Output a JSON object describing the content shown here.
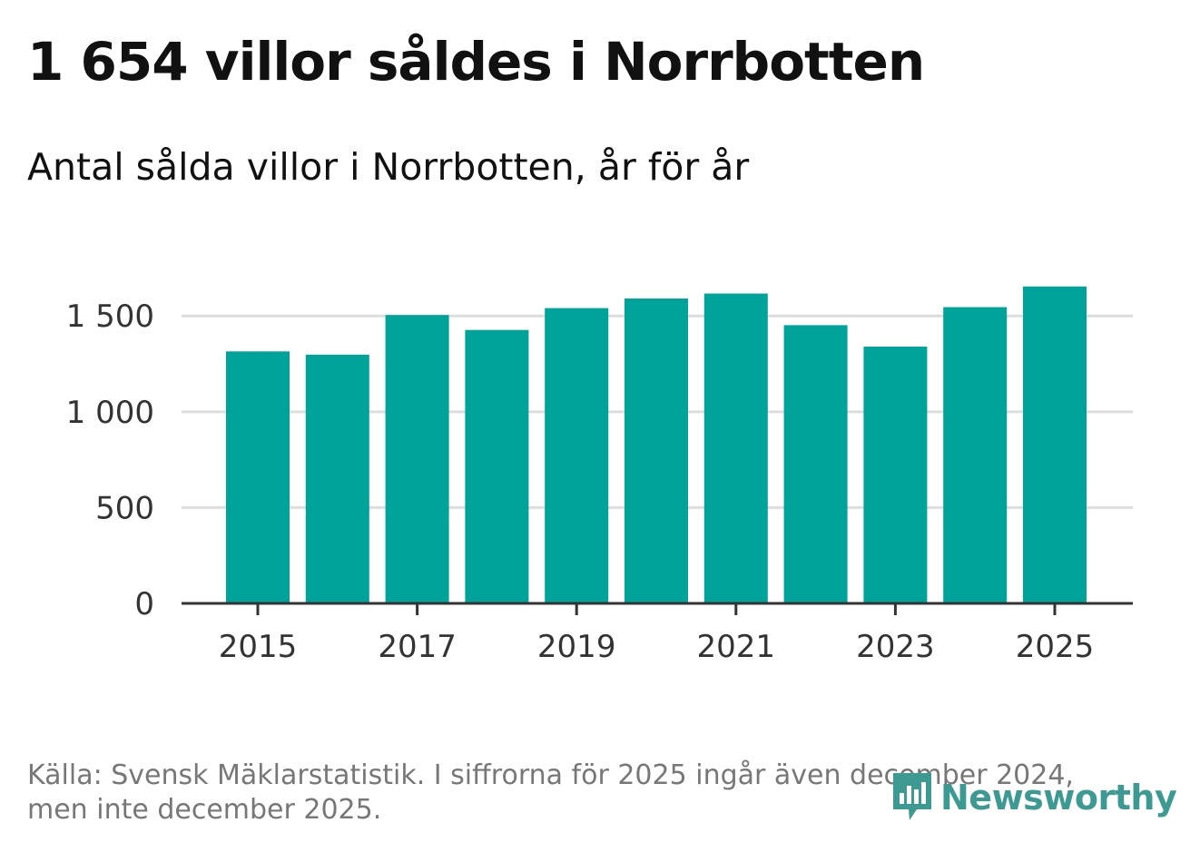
{
  "title": "1 654 villor såldes i Norrbotten",
  "subtitle": "Antal sålda villor i Norrbotten, år för år",
  "footer": {
    "source": "Källa: Svensk Mäklarstatistik. I siffrorna för 2025 ingår även december 2024, men inte december 2025."
  },
  "brand": {
    "name": "Newsworthy",
    "icon": "newsworthy-logo-icon",
    "color": "#3d9a93"
  },
  "colors": {
    "bar": "#00a39a",
    "grid": "#dddddd",
    "axis": "#333333"
  },
  "chart_data": {
    "type": "bar",
    "title": "1 654 villor såldes i Norrbotten",
    "subtitle": "Antal sålda villor i Norrbotten, år för år",
    "xlabel": "",
    "ylabel": "",
    "categories": [
      "2015",
      "2016",
      "2017",
      "2018",
      "2019",
      "2020",
      "2021",
      "2022",
      "2023",
      "2024",
      "2025"
    ],
    "values": [
      1315,
      1298,
      1505,
      1427,
      1541,
      1591,
      1617,
      1452,
      1340,
      1546,
      1654
    ],
    "ylim": [
      0,
      1700
    ],
    "yticks": [
      0,
      500,
      1000,
      1500
    ],
    "ytick_labels": [
      "0",
      "500",
      "1 000",
      "1 500"
    ],
    "xticks": [
      "2015",
      "2017",
      "2019",
      "2021",
      "2023",
      "2025"
    ],
    "grid": true
  }
}
